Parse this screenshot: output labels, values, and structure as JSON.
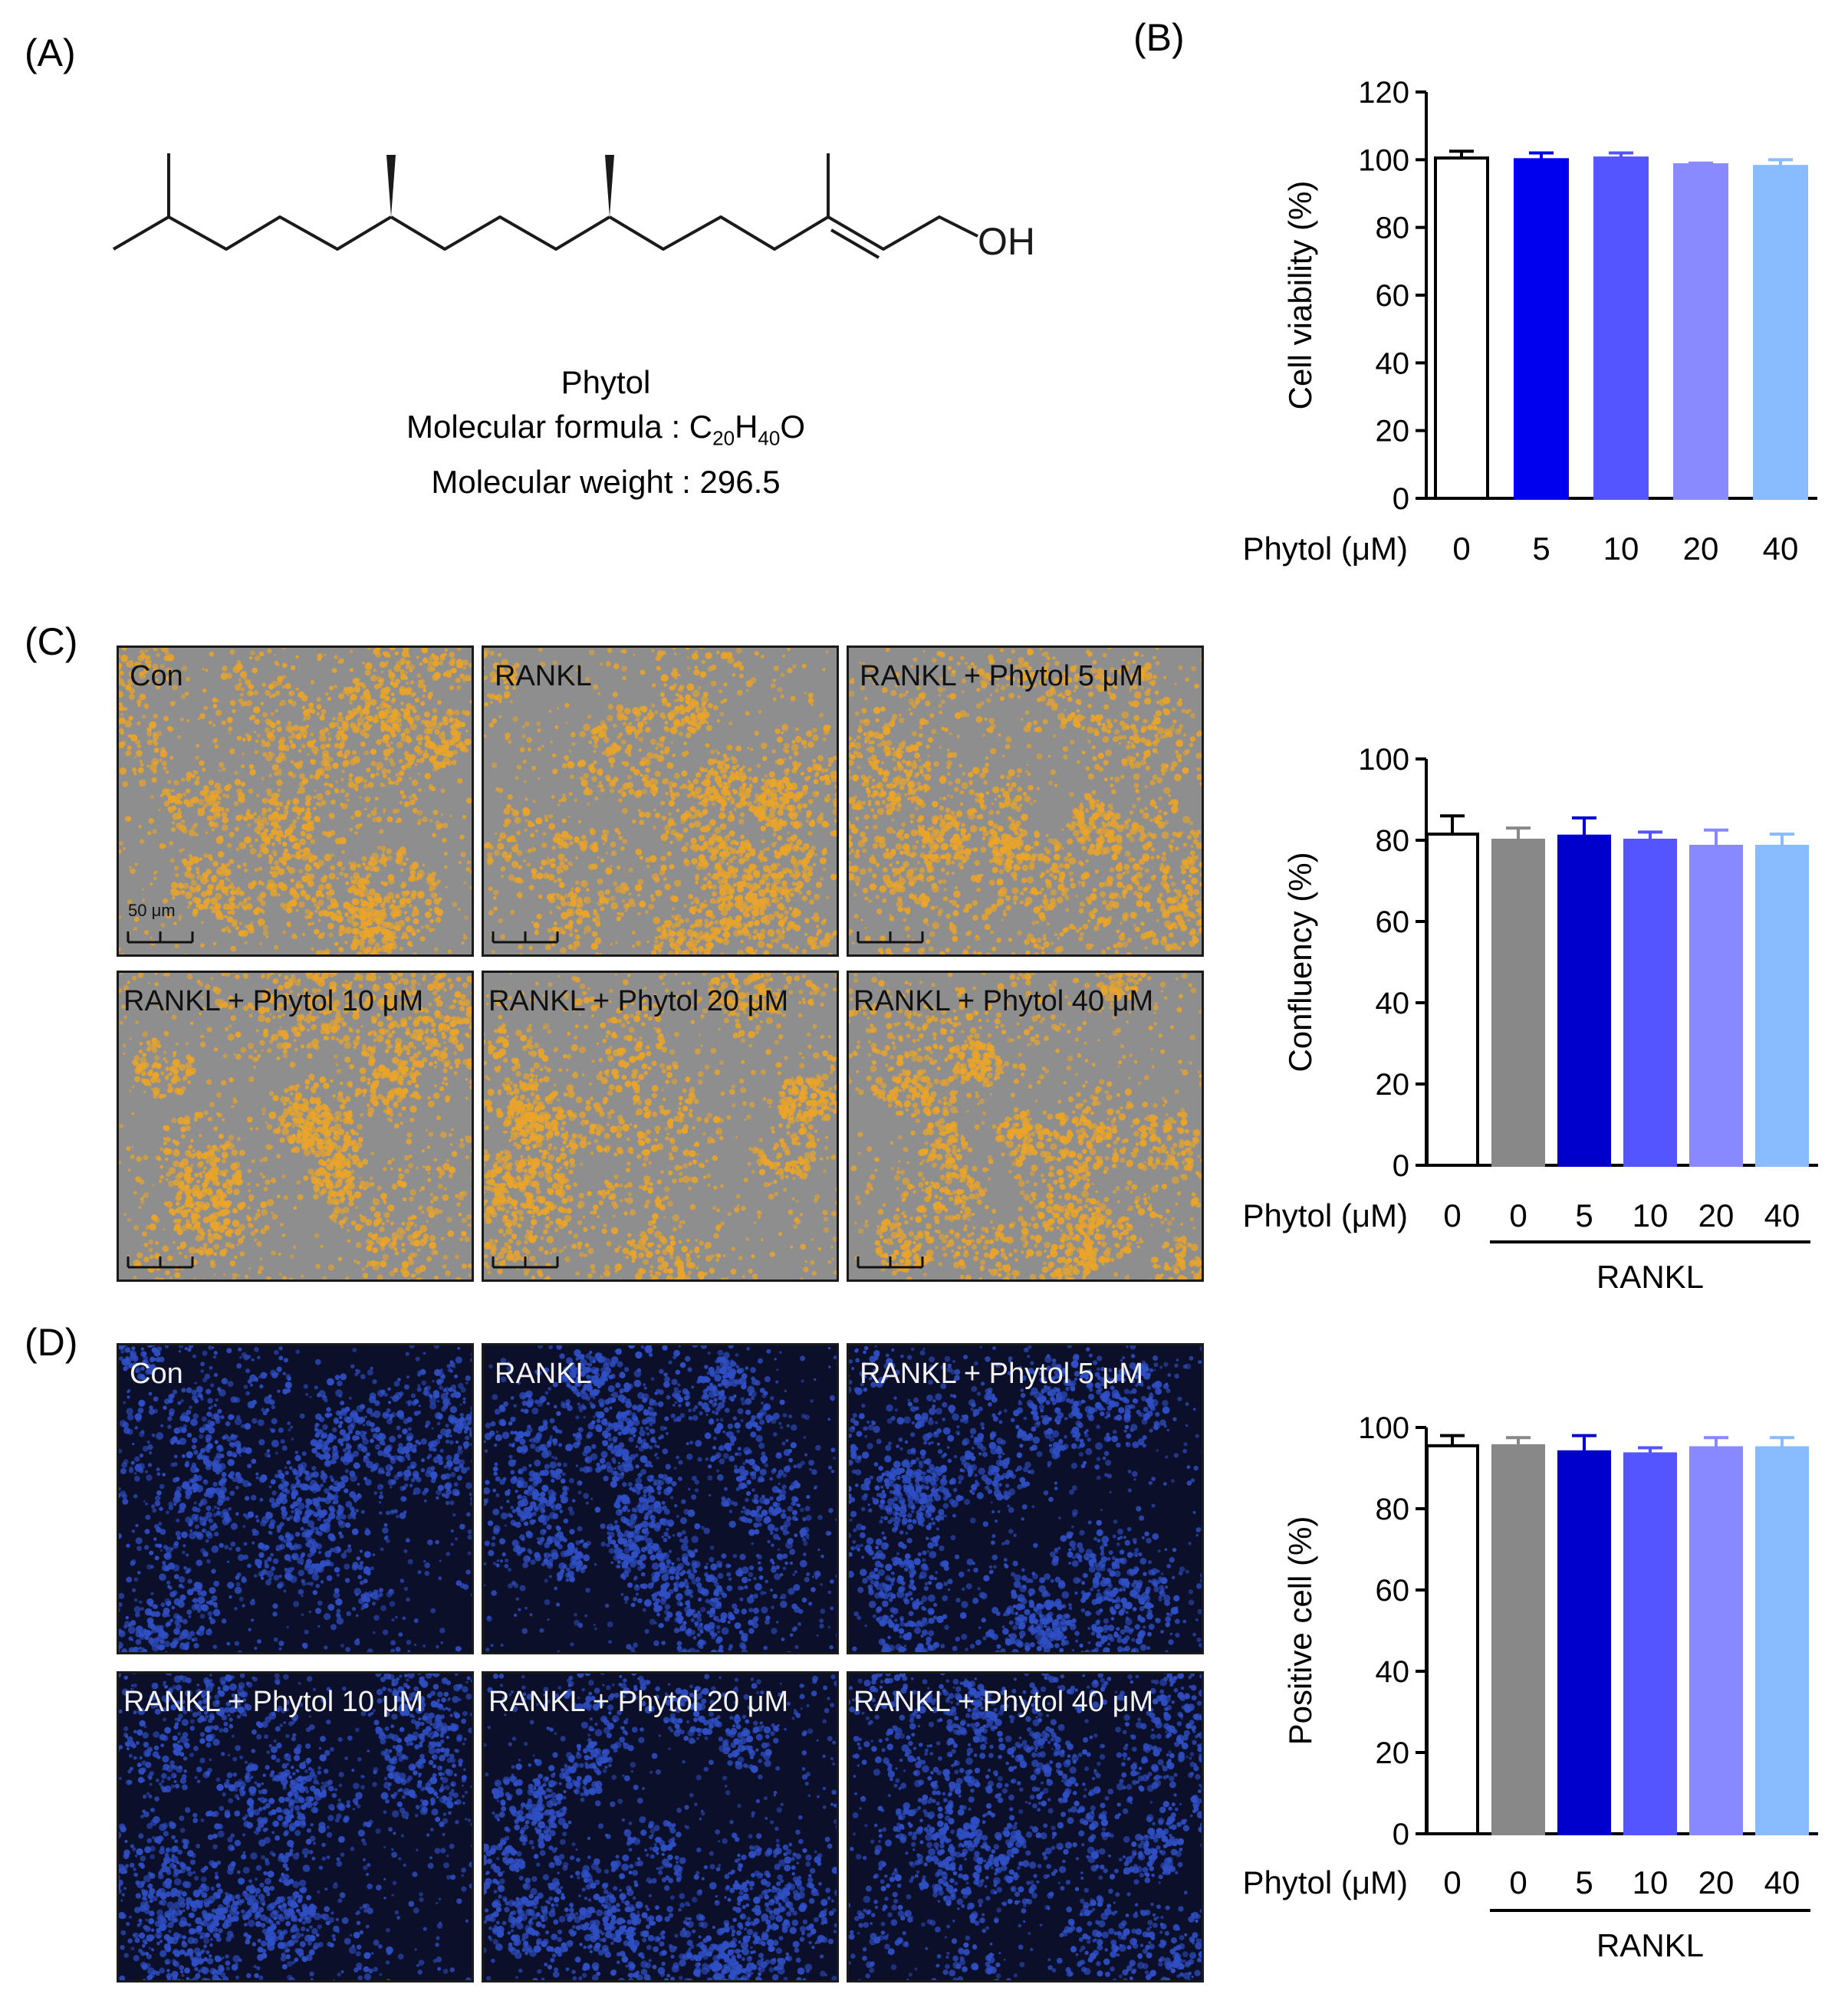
{
  "panels": {
    "A": {
      "label": "(A)",
      "compound_name": "Phytol",
      "formula_prefix": "Molecular formula : ",
      "formula": {
        "C": "C",
        "C_sub": "20",
        "H": "H",
        "H_sub": "40",
        "O": "O"
      },
      "weight_line": "Molecular weight : 296.5",
      "structure_label": "OH"
    },
    "B": {
      "label": "(B)"
    },
    "C": {
      "label": "(C)",
      "images": [
        {
          "label": "Con"
        },
        {
          "label": "RANKL"
        },
        {
          "label": "RANKL + Phytol 5 μM"
        },
        {
          "label": "RANKL + Phytol 10 μM"
        },
        {
          "label": "RANKL + Phytol 20 μM"
        },
        {
          "label": "RANKL + Phytol 40 μM"
        }
      ],
      "scale_bar": "50 μm"
    },
    "D": {
      "label": "(D)",
      "images": [
        {
          "label": "Con"
        },
        {
          "label": "RANKL"
        },
        {
          "label": "RANKL + Phytol 5 μM"
        },
        {
          "label": "RANKL + Phytol 10 μM"
        },
        {
          "label": "RANKL + Phytol 20 μM"
        },
        {
          "label": "RANKL + Phytol 40 μM"
        }
      ]
    }
  },
  "chart_data": [
    {
      "id": "B",
      "type": "bar",
      "ylabel": "Cell viability (%)",
      "xlabel": "Phytol (μM)",
      "ylim": [
        0,
        120
      ],
      "yticks": [
        0,
        20,
        40,
        60,
        80,
        100,
        120
      ],
      "categories": [
        "0",
        "5",
        "10",
        "20",
        "40"
      ],
      "values": [
        100.5,
        100,
        100.5,
        98.5,
        98
      ],
      "errors": [
        2,
        2,
        1.5,
        0.5,
        2
      ],
      "colors": [
        "#ffffff",
        "#0000ee",
        "#5555ff",
        "#8a8aff",
        "#88bbff"
      ],
      "group_label": ""
    },
    {
      "id": "C",
      "type": "bar",
      "ylabel": "Confluency (%)",
      "xlabel": "Phytol (μM)",
      "ylim": [
        0,
        100
      ],
      "yticks": [
        0,
        20,
        40,
        60,
        80,
        100
      ],
      "categories": [
        "0",
        "0",
        "5",
        "10",
        "20",
        "40"
      ],
      "values": [
        81.5,
        80,
        81,
        80,
        78.5,
        78.5
      ],
      "errors": [
        4.5,
        3,
        4.5,
        2,
        4,
        3
      ],
      "colors": [
        "#ffffff",
        "#888888",
        "#0000cc",
        "#5555ff",
        "#8888ff",
        "#88bbff"
      ],
      "group_label": "RANKL"
    },
    {
      "id": "D",
      "type": "bar",
      "ylabel": "Positive cell (%)",
      "xlabel": "Phytol (μM)",
      "ylim": [
        0,
        100
      ],
      "yticks": [
        0,
        20,
        40,
        60,
        80,
        100
      ],
      "categories": [
        "0",
        "0",
        "5",
        "10",
        "20",
        "40"
      ],
      "values": [
        95.5,
        95.5,
        94,
        93.5,
        95,
        95
      ],
      "errors": [
        2.5,
        2,
        4,
        1.5,
        2.5,
        2.5
      ],
      "colors": [
        "#ffffff",
        "#888888",
        "#0000cc",
        "#5555ff",
        "#8888ff",
        "#88bbff"
      ],
      "group_label": "RANKL"
    }
  ]
}
